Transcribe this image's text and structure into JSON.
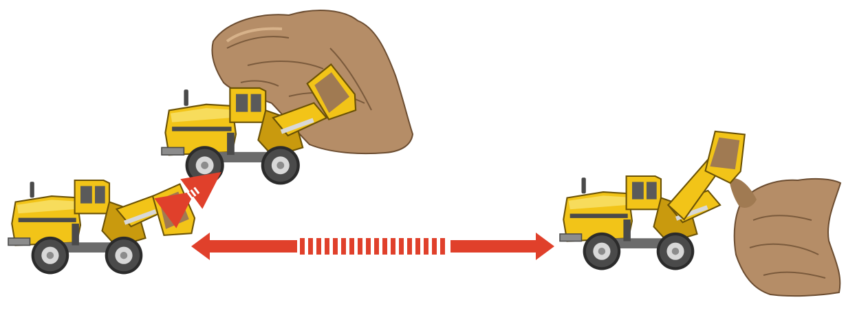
{
  "colors": {
    "background": "#ffffff",
    "loader_yellow": "#f2c418",
    "loader_yellow_light": "#f7dc5c",
    "loader_shadow": "#c99a0e",
    "tire": "#4a4a4a",
    "tire_dark": "#2b2b2b",
    "rim": "#d8d8d8",
    "steel": "#8c8c8c",
    "rock": "#b58d67",
    "rock_light": "#caa57e",
    "rock_dark": "#7a5a3c",
    "arrow_red": "#e0402b"
  },
  "icons": {
    "loader_digging": "wheel-loader-icon",
    "loader_reversing": "wheel-loader-icon",
    "loader_dumping": "wheel-loader-icon",
    "short_arrow": "double-arrow-icon",
    "long_arrow": "double-arrow-icon"
  }
}
